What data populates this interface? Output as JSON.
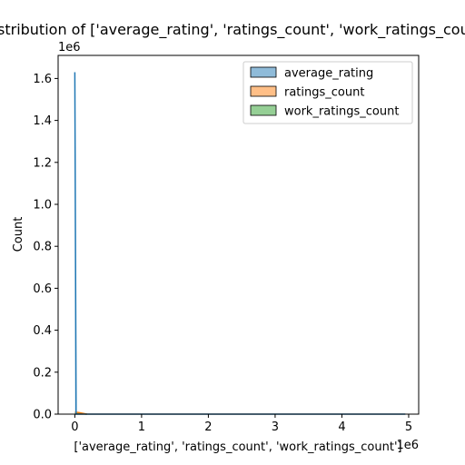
{
  "chart_data": {
    "type": "histogram",
    "title": "Distribution of ['average_rating', 'ratings_count', 'work_ratings_count']",
    "xlabel": "['average_rating', 'ratings_count', 'work_ratings_count']",
    "ylabel": "Count",
    "x_multiplier": "1e6",
    "y_multiplier": "1e6",
    "xlim": [
      -0.25,
      5.15
    ],
    "ylim": [
      0,
      1.71
    ],
    "xticks": [
      0,
      1,
      2,
      3,
      4,
      5
    ],
    "xtick_labels": [
      "0",
      "1",
      "2",
      "3",
      "4",
      "5"
    ],
    "yticks": [
      0.0,
      0.2,
      0.4,
      0.6,
      0.8,
      1.0,
      1.2,
      1.4,
      1.6
    ],
    "ytick_labels": [
      "0.0",
      "0.2",
      "0.4",
      "0.6",
      "0.8",
      "1.0",
      "1.2",
      "1.4",
      "1.6"
    ],
    "legend_position": "top-right",
    "series": [
      {
        "name": "average_rating",
        "color": "#1f77b4",
        "fill": "#8fbbd9",
        "x": [
          0.0,
          0.02,
          0.05,
          4.95
        ],
        "y": [
          1.63,
          0.0,
          0.0,
          0.0
        ]
      },
      {
        "name": "ratings_count",
        "color": "#ff7f0e",
        "fill": "#ffbf87",
        "x": [
          0.0,
          0.06,
          0.18
        ],
        "y": [
          0.01,
          0.008,
          0.0
        ]
      },
      {
        "name": "work_ratings_count",
        "color": "#2ca02c",
        "fill": "#95cf95",
        "x": [
          0.0,
          0.06,
          0.18
        ],
        "y": [
          0.006,
          0.004,
          0.0
        ]
      }
    ]
  }
}
